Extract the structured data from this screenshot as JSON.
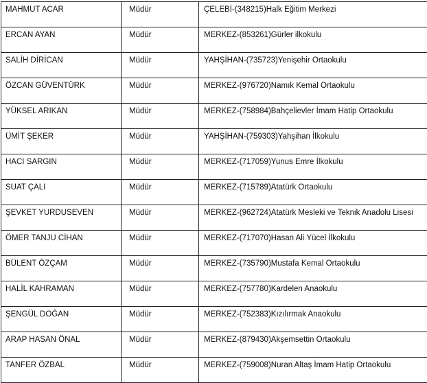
{
  "rows": [
    {
      "name": "MAHMUT ACAR",
      "title": "Müdür",
      "school": "ÇELEBİ-(348215)Halk Eğitim Merkezi"
    },
    {
      "name": "ERCAN AYAN",
      "title": "Müdür",
      "school": "MERKEZ-(853261)Gürler ilkokulu"
    },
    {
      "name": "SALİH DİRİCAN",
      "title": "Müdür",
      "school": "YAHŞİHAN-(735723)Yenişehir Ortaokulu"
    },
    {
      "name": "ÖZCAN GÜVENTÜRK",
      "title": "Müdür",
      "school": "MERKEZ-(976720)Namık Kemal Ortaokulu"
    },
    {
      "name": "YÜKSEL ARIKAN",
      "title": "Müdür",
      "school": "MERKEZ-(758984)Bahçelievler İmam Hatip Ortaokulu"
    },
    {
      "name": "ÜMİT ŞEKER",
      "title": "Müdür",
      "school": "YAHŞİHAN-(759303)Yahşihan İlkokulu"
    },
    {
      "name": "HACI SARGIN",
      "title": "Müdür",
      "school": "MERKEZ-(717059)Yunus Emre İlkokulu"
    },
    {
      "name": "SUAT ÇALI",
      "title": "Müdür",
      "school": "MERKEZ-(715789)Atatürk Ortaokulu"
    },
    {
      "name": "ŞEVKET YURDUSEVEN",
      "title": "Müdür",
      "school": "MERKEZ-(962724)Atatürk Mesleki ve Teknik Anadolu Lisesi"
    },
    {
      "name": "ÖMER TANJU CİHAN",
      "title": "Müdür",
      "school": "MERKEZ-(717070)Hasan Ali Yücel İlkokulu"
    },
    {
      "name": "BÜLENT ÖZÇAM",
      "title": "Müdür",
      "school": "MERKEZ-(735790)Mustafa Kemal Ortaokulu"
    },
    {
      "name": "HALİL KAHRAMAN",
      "title": "Müdür",
      "school": "MERKEZ-(757780)Kardelen Anaokulu"
    },
    {
      "name": "ŞENGÜL DOĞAN",
      "title": "Müdür",
      "school": "MERKEZ-(752383)Kızılırmak Anaokulu"
    },
    {
      "name": "ARAP HASAN ÖNAL",
      "title": "Müdür",
      "school": "MERKEZ-(879430)Akşemsettin Ortaokulu"
    },
    {
      "name": "TANFER ÖZBAL",
      "title": "Müdür",
      "school": "MERKEZ-(759008)Nuran Altaş İmam Hatip Ortaokulu"
    }
  ]
}
